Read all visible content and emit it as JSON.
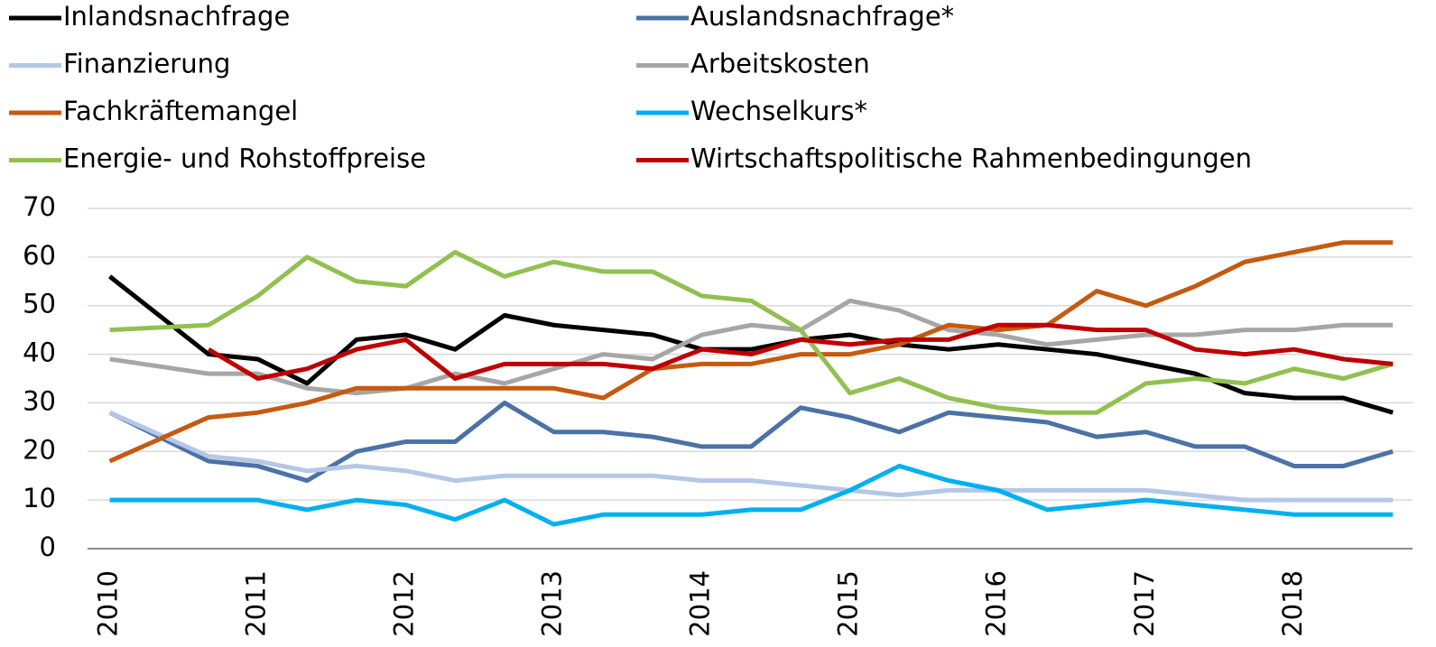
{
  "chart_data": {
    "type": "line",
    "x": [
      2010,
      2010.667,
      2011,
      2011.333,
      2011.667,
      2012,
      2012.333,
      2012.667,
      2013,
      2013.333,
      2013.667,
      2014,
      2014.333,
      2014.667,
      2015,
      2015.333,
      2015.667,
      2016,
      2016.333,
      2016.667,
      2017,
      2017.333,
      2017.667,
      2018,
      2018.333,
      2018.667
    ],
    "xlim": [
      2009.85,
      2018.8
    ],
    "xticks": [
      2010,
      2011,
      2012,
      2013,
      2014,
      2015,
      2016,
      2017,
      2018
    ],
    "ylim": [
      0,
      70
    ],
    "yticks": [
      0,
      10,
      20,
      30,
      40,
      50,
      60,
      70
    ],
    "grid": true,
    "series": [
      {
        "name": "Inlandsnachfrage",
        "color": "#000000",
        "values": [
          56,
          40,
          39,
          34,
          43,
          44,
          41,
          48,
          46,
          45,
          44,
          41,
          41,
          43,
          44,
          42,
          41,
          42,
          41,
          40,
          38,
          36,
          32,
          31,
          31,
          28
        ]
      },
      {
        "name": "Auslandsnachfrage*",
        "color": "#4a72a6",
        "values": [
          28,
          18,
          17,
          14,
          20,
          22,
          22,
          30,
          24,
          24,
          23,
          21,
          21,
          29,
          27,
          24,
          28,
          27,
          26,
          23,
          24,
          21,
          21,
          17,
          17,
          20
        ]
      },
      {
        "name": "Finanzierung",
        "color": "#b4c7e7",
        "values": [
          28,
          19,
          18,
          16,
          17,
          16,
          14,
          15,
          15,
          15,
          15,
          14,
          14,
          13,
          12,
          11,
          12,
          12,
          12,
          12,
          12,
          11,
          10,
          10,
          10,
          10
        ]
      },
      {
        "name": "Arbeitskosten",
        "color": "#a6a6a6",
        "values": [
          39,
          36,
          36,
          33,
          32,
          33,
          36,
          34,
          37,
          40,
          39,
          44,
          46,
          45,
          51,
          49,
          45,
          44,
          42,
          43,
          44,
          44,
          45,
          45,
          46,
          46
        ]
      },
      {
        "name": "Fachkräftemangel",
        "color": "#c55a11",
        "values": [
          18,
          27,
          28,
          30,
          33,
          33,
          33,
          33,
          33,
          31,
          37,
          38,
          38,
          40,
          40,
          42,
          46,
          45,
          46,
          53,
          50,
          54,
          59,
          61,
          63,
          63
        ]
      },
      {
        "name": "Wechselkurs*",
        "color": "#00b0f0",
        "values": [
          10,
          10,
          10,
          8,
          10,
          9,
          6,
          10,
          5,
          7,
          7,
          7,
          8,
          8,
          12,
          17,
          14,
          12,
          8,
          9,
          10,
          9,
          8,
          7,
          7,
          7
        ]
      },
      {
        "name": "Energie- und Rohstoffpreise",
        "color": "#92c050",
        "values": [
          45,
          46,
          52,
          60,
          55,
          54,
          61,
          56,
          59,
          57,
          57,
          52,
          51,
          45,
          32,
          35,
          31,
          29,
          28,
          28,
          34,
          35,
          34,
          37,
          35,
          38
        ]
      },
      {
        "name": "Wirtschaftspolitische Rahmenbedingungen",
        "color": "#c00000",
        "values": [
          null,
          41,
          35,
          37,
          41,
          43,
          35,
          38,
          38,
          38,
          37,
          41,
          40,
          43,
          42,
          43,
          43,
          46,
          46,
          45,
          45,
          41,
          40,
          41,
          39,
          38
        ]
      }
    ]
  }
}
